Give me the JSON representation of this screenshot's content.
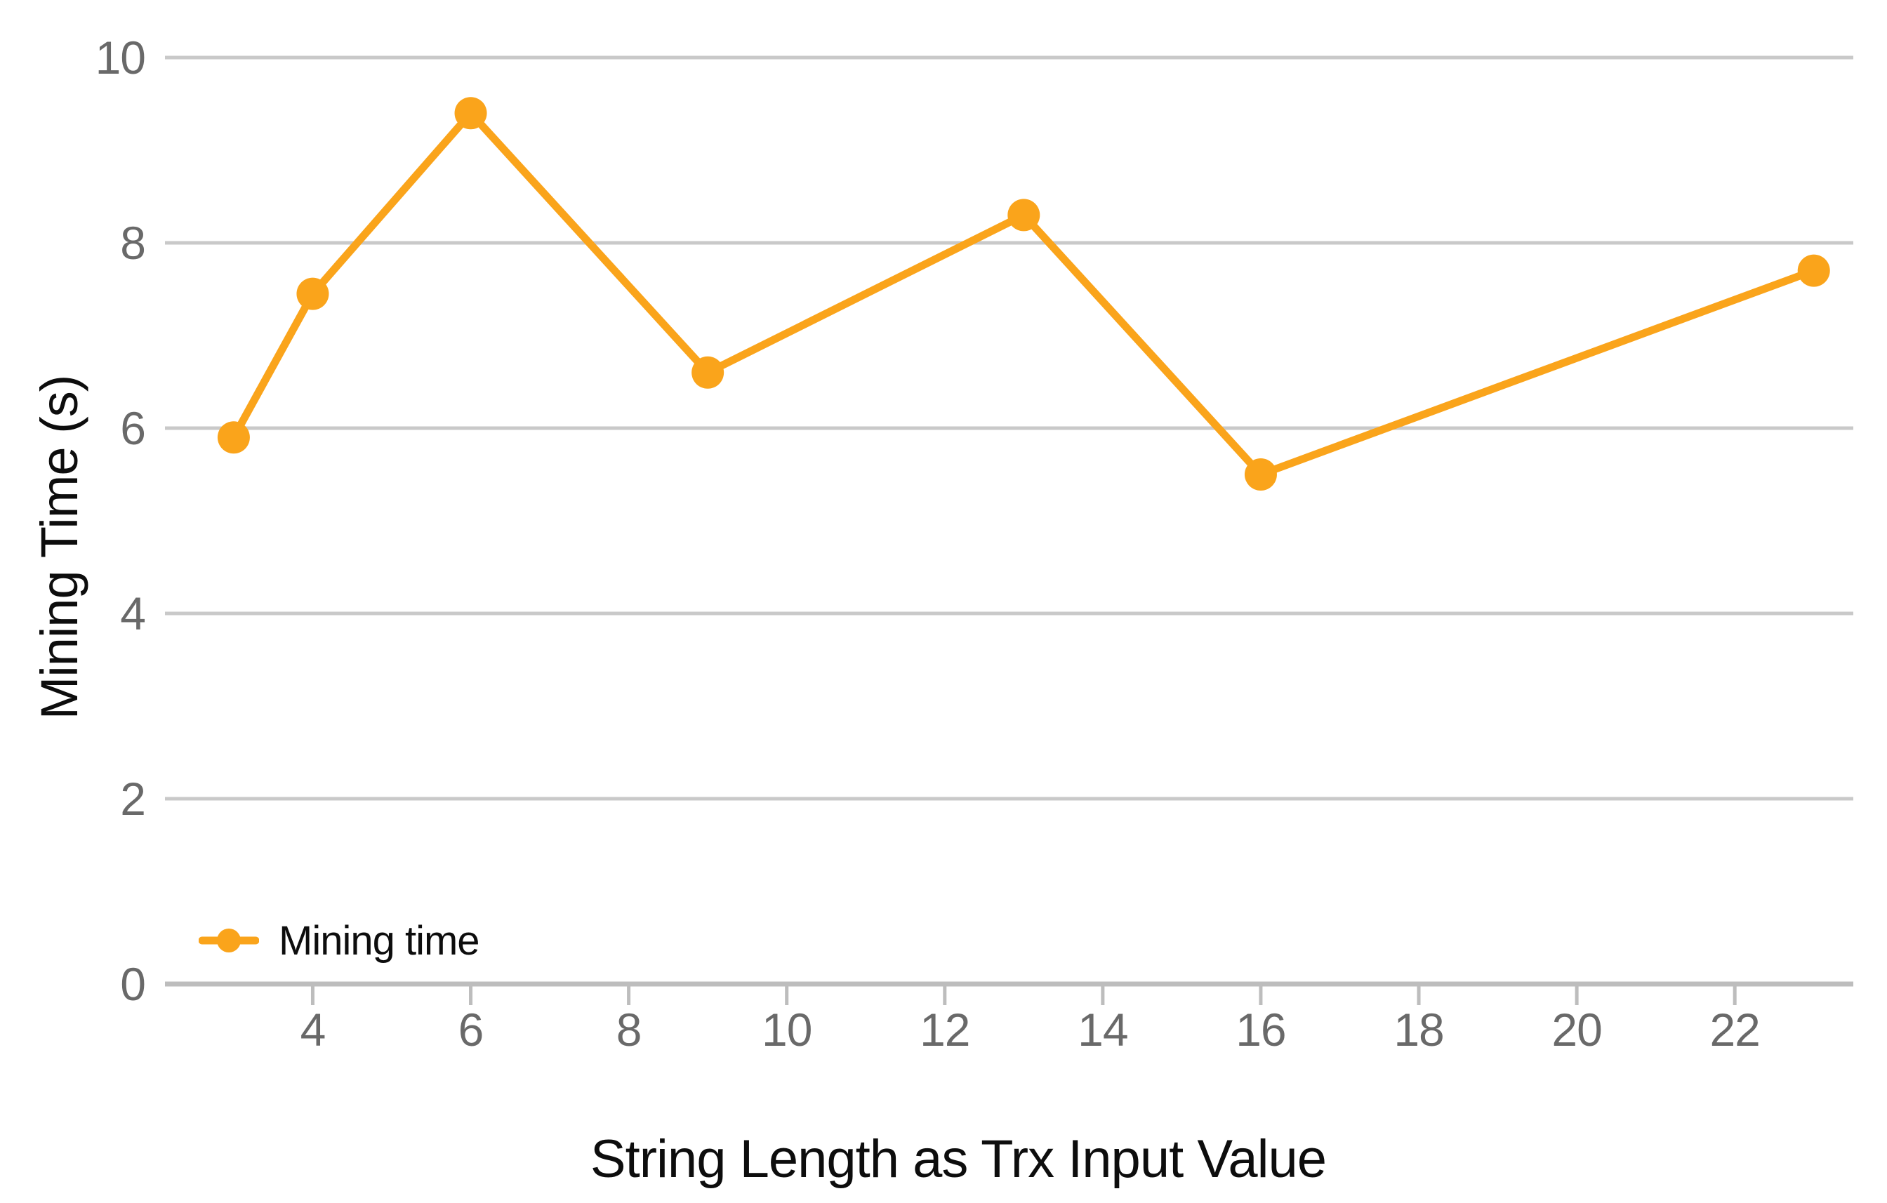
{
  "chart_data": {
    "type": "line",
    "title": "",
    "xlabel": "String Length as Trx Input Value",
    "ylabel": "Mining Time (s)",
    "series": [
      {
        "name": "Mining time",
        "points": [
          [
            3,
            5.9
          ],
          [
            4,
            7.45
          ],
          [
            6,
            9.4
          ],
          [
            9,
            6.6
          ],
          [
            13,
            8.3
          ],
          [
            16,
            5.5
          ],
          [
            23,
            7.7
          ]
        ]
      }
    ],
    "x_ticks": [
      4,
      6,
      8,
      10,
      12,
      14,
      16,
      18,
      20,
      22
    ],
    "y_ticks": [
      0,
      2,
      4,
      6,
      8,
      10
    ],
    "xlim": [
      2.13,
      23.5
    ],
    "ylim": [
      0,
      10
    ],
    "grid": "horizontal-only",
    "legend_position": "inside-bottom-left",
    "colors": {
      "series": "#FAA41B",
      "gridline": "#C9C9C9",
      "axis_line": "#BDBDBD",
      "tick_label": "#696969",
      "title_text": "#0D0D0D"
    }
  }
}
